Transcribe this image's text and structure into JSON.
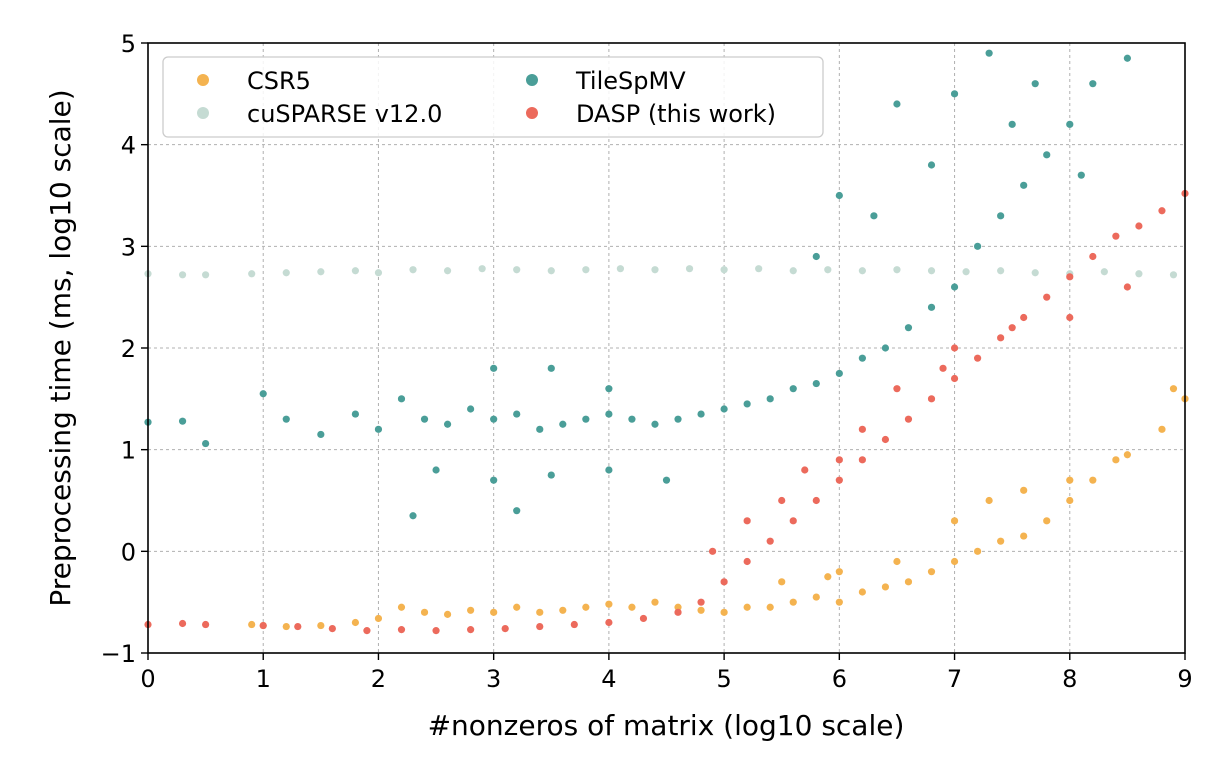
{
  "chart_data": {
    "type": "scatter",
    "title": "",
    "xlabel": "#nonzeros of matrix (log10 scale)",
    "ylabel": "Preprocessing time (ms, log10 scale)",
    "xlim": [
      0,
      9
    ],
    "ylim": [
      -1,
      5
    ],
    "x_ticks": [
      "0",
      "1",
      "2",
      "3",
      "4",
      "5",
      "6",
      "7",
      "8",
      "9"
    ],
    "y_ticks": [
      "−1",
      "0",
      "1",
      "2",
      "3",
      "4",
      "5"
    ],
    "grid": true,
    "legend_position": "top-left",
    "series": [
      {
        "name": "CSR5",
        "color": "#f4b350",
        "points": [
          [
            0.9,
            -0.72
          ],
          [
            1.0,
            -0.73
          ],
          [
            1.2,
            -0.74
          ],
          [
            1.5,
            -0.73
          ],
          [
            1.8,
            -0.7
          ],
          [
            2.0,
            -0.66
          ],
          [
            2.2,
            -0.55
          ],
          [
            2.4,
            -0.6
          ],
          [
            2.6,
            -0.62
          ],
          [
            2.8,
            -0.58
          ],
          [
            3.0,
            -0.6
          ],
          [
            3.2,
            -0.55
          ],
          [
            3.4,
            -0.6
          ],
          [
            3.6,
            -0.58
          ],
          [
            3.8,
            -0.55
          ],
          [
            4.0,
            -0.52
          ],
          [
            4.2,
            -0.55
          ],
          [
            4.4,
            -0.5
          ],
          [
            4.6,
            -0.55
          ],
          [
            4.8,
            -0.58
          ],
          [
            5.0,
            -0.6
          ],
          [
            5.2,
            -0.55
          ],
          [
            5.4,
            -0.55
          ],
          [
            5.6,
            -0.5
          ],
          [
            5.8,
            -0.45
          ],
          [
            6.0,
            -0.5
          ],
          [
            6.2,
            -0.4
          ],
          [
            6.4,
            -0.35
          ],
          [
            6.6,
            -0.3
          ],
          [
            6.8,
            -0.2
          ],
          [
            7.0,
            -0.1
          ],
          [
            7.2,
            0.0
          ],
          [
            7.4,
            0.1
          ],
          [
            7.6,
            0.15
          ],
          [
            7.8,
            0.3
          ],
          [
            8.0,
            0.5
          ],
          [
            8.2,
            0.7
          ],
          [
            8.5,
            0.95
          ],
          [
            8.8,
            1.2
          ],
          [
            9.0,
            1.5
          ],
          [
            5.5,
            -0.3
          ],
          [
            6.0,
            -0.2
          ],
          [
            6.5,
            -0.1
          ],
          [
            7.0,
            0.3
          ],
          [
            7.3,
            0.5
          ],
          [
            7.6,
            0.6
          ],
          [
            8.0,
            0.7
          ],
          [
            8.4,
            0.9
          ],
          [
            8.9,
            1.6
          ],
          [
            5.9,
            -0.25
          ]
        ]
      },
      {
        "name": "cuSPARSE v12.0",
        "color": "#c5dbd3",
        "points": [
          [
            0.0,
            2.73
          ],
          [
            0.3,
            2.72
          ],
          [
            0.5,
            2.72
          ],
          [
            0.9,
            2.73
          ],
          [
            1.2,
            2.74
          ],
          [
            1.5,
            2.75
          ],
          [
            1.8,
            2.76
          ],
          [
            2.0,
            2.74
          ],
          [
            2.3,
            2.77
          ],
          [
            2.6,
            2.76
          ],
          [
            2.9,
            2.78
          ],
          [
            3.2,
            2.77
          ],
          [
            3.5,
            2.76
          ],
          [
            3.8,
            2.77
          ],
          [
            4.1,
            2.78
          ],
          [
            4.4,
            2.77
          ],
          [
            4.7,
            2.78
          ],
          [
            5.0,
            2.77
          ],
          [
            5.3,
            2.78
          ],
          [
            5.6,
            2.76
          ],
          [
            5.9,
            2.77
          ],
          [
            6.2,
            2.76
          ],
          [
            6.5,
            2.77
          ],
          [
            6.8,
            2.76
          ],
          [
            7.1,
            2.75
          ],
          [
            7.4,
            2.76
          ],
          [
            7.7,
            2.74
          ],
          [
            8.0,
            2.73
          ],
          [
            8.3,
            2.75
          ],
          [
            8.6,
            2.73
          ],
          [
            8.9,
            2.72
          ]
        ]
      },
      {
        "name": "TileSpMV",
        "color": "#4a9e98",
        "points": [
          [
            0.0,
            1.27
          ],
          [
            0.3,
            1.28
          ],
          [
            0.5,
            1.06
          ],
          [
            1.0,
            1.55
          ],
          [
            1.2,
            1.3
          ],
          [
            1.5,
            1.15
          ],
          [
            1.8,
            1.35
          ],
          [
            2.0,
            1.2
          ],
          [
            2.2,
            1.5
          ],
          [
            2.4,
            1.3
          ],
          [
            2.6,
            1.25
          ],
          [
            2.8,
            1.4
          ],
          [
            3.0,
            1.3
          ],
          [
            3.2,
            1.35
          ],
          [
            3.4,
            1.2
          ],
          [
            3.6,
            1.25
          ],
          [
            3.8,
            1.3
          ],
          [
            4.0,
            1.35
          ],
          [
            4.2,
            1.3
          ],
          [
            4.4,
            1.25
          ],
          [
            4.6,
            1.3
          ],
          [
            4.8,
            1.35
          ],
          [
            5.0,
            1.4
          ],
          [
            5.2,
            1.45
          ],
          [
            5.4,
            1.5
          ],
          [
            5.6,
            1.6
          ],
          [
            5.8,
            1.65
          ],
          [
            6.0,
            1.75
          ],
          [
            6.2,
            1.9
          ],
          [
            6.4,
            2.0
          ],
          [
            6.6,
            2.2
          ],
          [
            6.8,
            2.4
          ],
          [
            7.0,
            2.6
          ],
          [
            7.2,
            3.0
          ],
          [
            7.4,
            3.3
          ],
          [
            7.6,
            3.6
          ],
          [
            7.8,
            3.9
          ],
          [
            8.0,
            4.2
          ],
          [
            8.2,
            4.6
          ],
          [
            8.5,
            4.85
          ],
          [
            2.5,
            0.8
          ],
          [
            3.0,
            0.7
          ],
          [
            3.5,
            0.75
          ],
          [
            4.0,
            0.8
          ],
          [
            4.5,
            0.7
          ],
          [
            3.2,
            0.4
          ],
          [
            2.3,
            0.35
          ],
          [
            3.0,
            1.8
          ],
          [
            3.5,
            1.8
          ],
          [
            4.0,
            1.6
          ],
          [
            6.5,
            4.4
          ],
          [
            7.0,
            4.5
          ],
          [
            7.3,
            4.9
          ],
          [
            7.7,
            4.6
          ],
          [
            8.1,
            3.7
          ],
          [
            6.0,
            3.5
          ],
          [
            5.8,
            2.9
          ],
          [
            6.3,
            3.3
          ],
          [
            6.8,
            3.8
          ],
          [
            7.5,
            4.2
          ]
        ]
      },
      {
        "name": "DASP (this work)",
        "color": "#ec6a5c",
        "points": [
          [
            0.0,
            -0.72
          ],
          [
            0.3,
            -0.71
          ],
          [
            0.5,
            -0.72
          ],
          [
            1.0,
            -0.73
          ],
          [
            1.3,
            -0.74
          ],
          [
            1.6,
            -0.76
          ],
          [
            1.9,
            -0.78
          ],
          [
            2.2,
            -0.77
          ],
          [
            2.5,
            -0.78
          ],
          [
            2.8,
            -0.77
          ],
          [
            3.1,
            -0.76
          ],
          [
            3.4,
            -0.74
          ],
          [
            3.7,
            -0.72
          ],
          [
            4.0,
            -0.7
          ],
          [
            4.3,
            -0.66
          ],
          [
            4.6,
            -0.6
          ],
          [
            4.8,
            -0.5
          ],
          [
            5.0,
            -0.3
          ],
          [
            5.2,
            -0.1
          ],
          [
            5.4,
            0.1
          ],
          [
            5.6,
            0.3
          ],
          [
            5.8,
            0.5
          ],
          [
            6.0,
            0.7
          ],
          [
            6.2,
            0.9
          ],
          [
            6.4,
            1.1
          ],
          [
            6.6,
            1.3
          ],
          [
            6.8,
            1.5
          ],
          [
            7.0,
            1.7
          ],
          [
            7.2,
            1.9
          ],
          [
            7.4,
            2.1
          ],
          [
            7.6,
            2.3
          ],
          [
            7.8,
            2.5
          ],
          [
            8.0,
            2.7
          ],
          [
            8.2,
            2.9
          ],
          [
            8.4,
            3.1
          ],
          [
            8.6,
            3.2
          ],
          [
            8.8,
            3.35
          ],
          [
            9.0,
            3.52
          ],
          [
            5.5,
            0.5
          ],
          [
            6.0,
            0.9
          ],
          [
            6.5,
            1.6
          ],
          [
            7.0,
            2.0
          ],
          [
            7.5,
            2.2
          ],
          [
            8.0,
            2.3
          ],
          [
            8.5,
            2.6
          ],
          [
            5.2,
            0.3
          ],
          [
            4.9,
            0.0
          ],
          [
            5.7,
            0.8
          ],
          [
            6.2,
            1.2
          ],
          [
            6.9,
            1.8
          ]
        ]
      }
    ]
  }
}
